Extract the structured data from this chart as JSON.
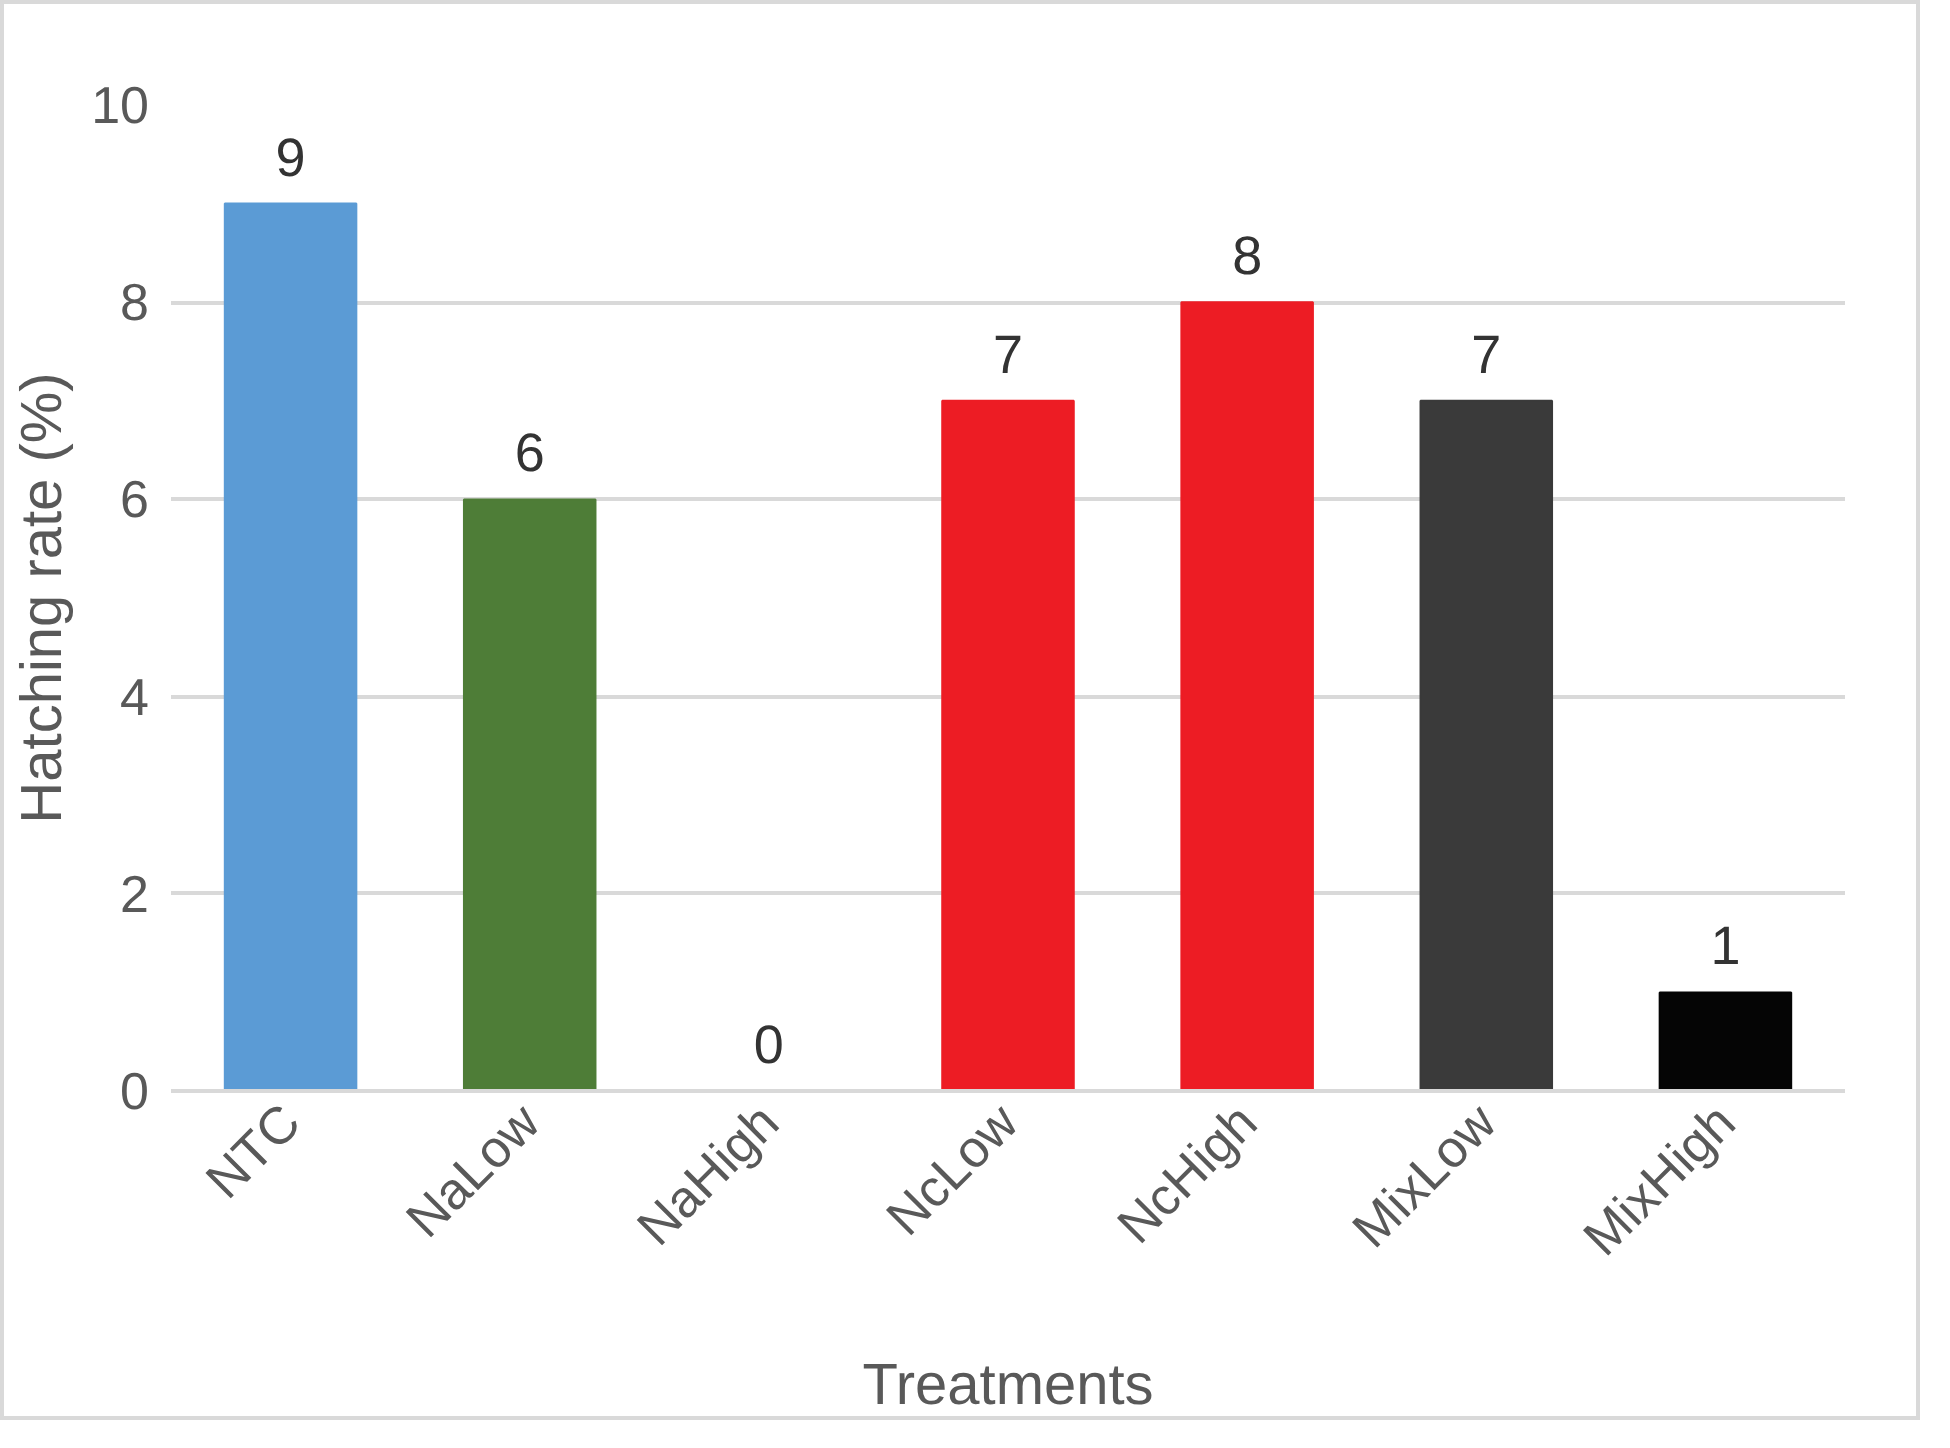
{
  "chart_data": {
    "type": "bar",
    "xlabel": "Treatments",
    "ylabel": "Hatching rate (%)",
    "categories": [
      "NTC",
      "NaLow",
      "NaHigh",
      "NcLow",
      "NcHigh",
      "MixLow",
      "MixHigh"
    ],
    "values": [
      9,
      6,
      0,
      7,
      8,
      7,
      1
    ],
    "colors": [
      "#5b9bd5",
      "#4e7d37",
      "#c9c9c9",
      "#ed1c24",
      "#ed1c24",
      "#3a3a3a",
      "#050505"
    ],
    "ylim": [
      0,
      10
    ],
    "yticks": [
      0,
      2,
      4,
      6,
      8,
      10
    ],
    "grid": "y",
    "data_labels": true
  }
}
